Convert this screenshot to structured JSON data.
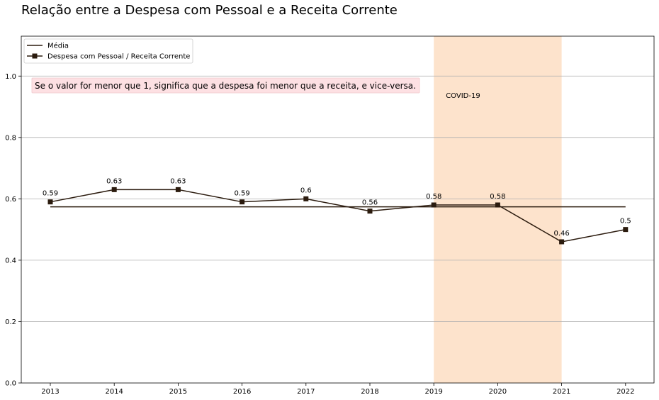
{
  "chart_data": {
    "type": "line",
    "title": "Relação entre a Despesa com Pessoal e a Receita Corrente",
    "x": [
      "2013",
      "2014",
      "2015",
      "2016",
      "2017",
      "2018",
      "2019",
      "2020",
      "2021",
      "2022"
    ],
    "series": [
      {
        "name": "Média",
        "values": [
          0.574,
          0.574,
          0.574,
          0.574,
          0.574,
          0.574,
          0.574,
          0.574,
          0.574,
          0.574
        ],
        "marker": "none"
      },
      {
        "name": "Despesa com Pessoal / Receita Corrente",
        "values": [
          0.59,
          0.63,
          0.63,
          0.59,
          0.6,
          0.56,
          0.58,
          0.58,
          0.46,
          0.5
        ],
        "marker": "square"
      }
    ],
    "data_labels": [
      "0.59",
      "0.63",
      "0.63",
      "0.59",
      "0.6",
      "0.56",
      "0.58",
      "0.58",
      "0.46",
      "0.5"
    ],
    "ylim": [
      0,
      1.13
    ],
    "yticks": [
      "0.0",
      "0.2",
      "0.4",
      "0.6",
      "0.8",
      "1.0"
    ],
    "ytick_values": [
      0,
      0.2,
      0.4,
      0.6,
      0.8,
      1.0
    ],
    "grid": "horizontal",
    "legend_position": "top-left",
    "shaded_span": {
      "from": "2019",
      "to": "2021",
      "label": "COVID-19",
      "color": "#fde3cc"
    },
    "annotation": {
      "text": "Se o valor for menor que 1, significa que a despesa foi menor que a receita, e vice-versa.",
      "background": "#fde0e3"
    },
    "colors": {
      "line": "#2b1b0e",
      "marker": "#2b1b0e",
      "grid": "#b0b0b0"
    }
  }
}
